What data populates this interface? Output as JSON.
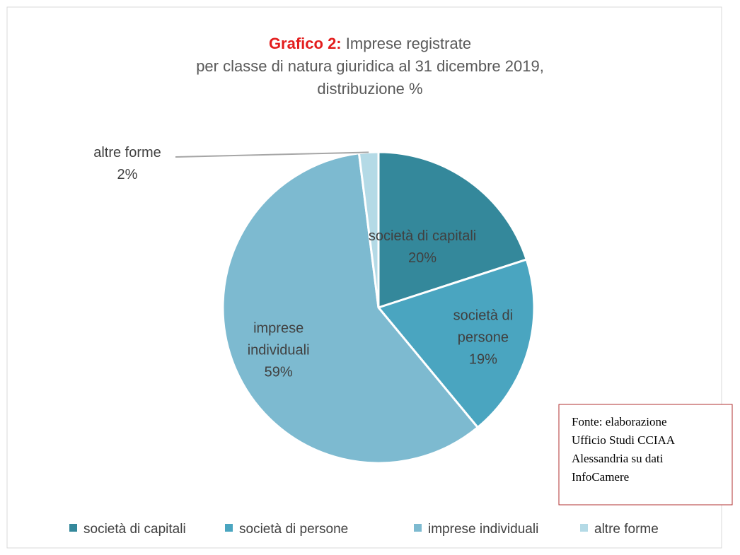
{
  "chart_data": {
    "type": "pie",
    "title_prefix": "Grafico 2:",
    "title_lines": [
      "Imprese registrate",
      "per classe di natura giuridica al 31 dicembre 2019,",
      "distribuzione %"
    ],
    "categories": [
      "società di capitali",
      "società di persone",
      "imprese individuali",
      "altre forme"
    ],
    "values": [
      20,
      19,
      59,
      2
    ],
    "value_labels": [
      "20%",
      "19%",
      "59%",
      "2%"
    ],
    "colors": [
      "#34889b",
      "#4aa5c0",
      "#7dbad0",
      "#b4dae6"
    ],
    "legend": "bottom",
    "annotation": [
      "Fonte: elaborazione",
      "Ufficio Studi CCIAA",
      "Alessandria su dati",
      "InfoCamere"
    ]
  }
}
